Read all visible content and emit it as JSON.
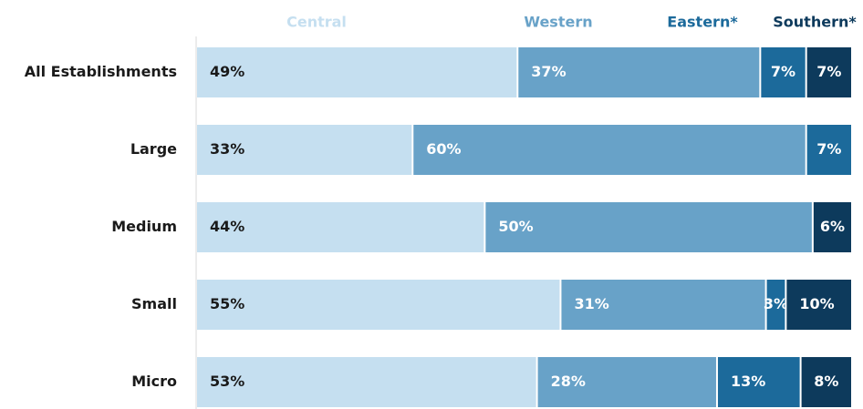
{
  "chart_data": {
    "type": "stacked_bar_horizontal",
    "categories": [
      "All Establishments",
      "Large",
      "Medium",
      "Small",
      "Micro"
    ],
    "series": [
      {
        "name": "Central",
        "color": "#c5dff0",
        "values": [
          49,
          33,
          44,
          55,
          53
        ]
      },
      {
        "name": "Western",
        "color": "#68a2c8",
        "values": [
          37,
          60,
          50,
          31,
          28
        ]
      },
      {
        "name": "Eastern*",
        "color": "#1c6a9b",
        "values": [
          7,
          7,
          null,
          3,
          13
        ]
      },
      {
        "name": "Southern*",
        "color": "#0d3a5c",
        "values": [
          7,
          null,
          6,
          10,
          8
        ]
      }
    ],
    "value_labels": [
      [
        "49%",
        "33%",
        "44%",
        "55%",
        "53%"
      ],
      [
        "37%",
        "60%",
        "50%",
        "31%",
        "28%"
      ],
      [
        "7%",
        "7%",
        null,
        "3%",
        "13%"
      ],
      [
        "7%",
        null,
        "6%",
        "10%",
        "8%"
      ]
    ]
  }
}
